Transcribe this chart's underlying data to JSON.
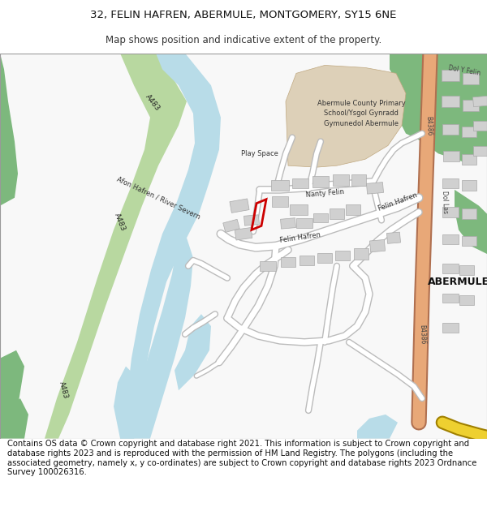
{
  "title_line1": "32, FELIN HAFREN, ABERMULE, MONTGOMERY, SY15 6NE",
  "title_line2": "Map shows position and indicative extent of the property.",
  "title_fontsize": 9.5,
  "subtitle_fontsize": 8.5,
  "footer_text": "Contains OS data © Crown copyright and database right 2021. This information is subject to Crown copyright and database rights 2023 and is reproduced with the permission of HM Land Registry. The polygons (including the associated geometry, namely x, y co-ordinates) are subject to Crown copyright and database rights 2023 Ordnance Survey 100026316.",
  "footer_fontsize": 7.2,
  "bg_color": "#ffffff",
  "water_color": "#b8dce8",
  "green_dark": "#7db87d",
  "green_light": "#b8d8a0",
  "road_color": "#ffffff",
  "building_color": "#d0d0d0",
  "building_stroke": "#b0b0b0",
  "school_color": "#ddd0b8",
  "b4386_outer": "#c8906a",
  "b4386_inner": "#e8a888",
  "yellow_outer": "#b8a000",
  "yellow_inner": "#e8d840",
  "red_outline_color": "#cc0000",
  "map_border": "#999999"
}
